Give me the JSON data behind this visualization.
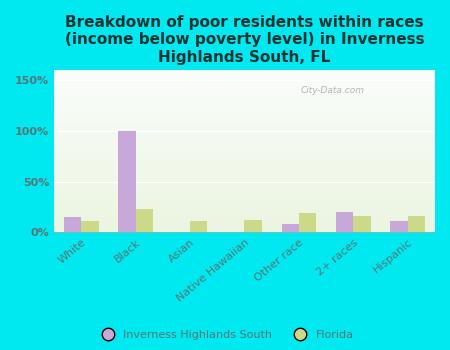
{
  "title": "Breakdown of poor residents within races\n(income below poverty level) in Inverness\nHighlands South, FL",
  "categories": [
    "White",
    "Black",
    "Asian",
    "Native Hawaiian",
    "Other race",
    "2+ races",
    "Hispanic"
  ],
  "inverness_values": [
    15,
    100,
    0,
    0,
    8,
    20,
    11
  ],
  "florida_values": [
    11,
    23,
    11,
    12,
    19,
    16,
    16
  ],
  "inverness_color": "#c8a8d8",
  "florida_color": "#ccd988",
  "bar_width": 0.32,
  "ylim": [
    0,
    160
  ],
  "yticks": [
    0,
    50,
    100,
    150
  ],
  "ytick_labels": [
    "0%",
    "50%",
    "100%",
    "150%"
  ],
  "bg_color": "#00e8f0",
  "watermark": "City-Data.com",
  "legend_labels": [
    "Inverness Highlands South",
    "Florida"
  ],
  "title_fontsize": 11,
  "axis_fontsize": 8,
  "tick_color": "#557777",
  "title_color": "#1a3333"
}
